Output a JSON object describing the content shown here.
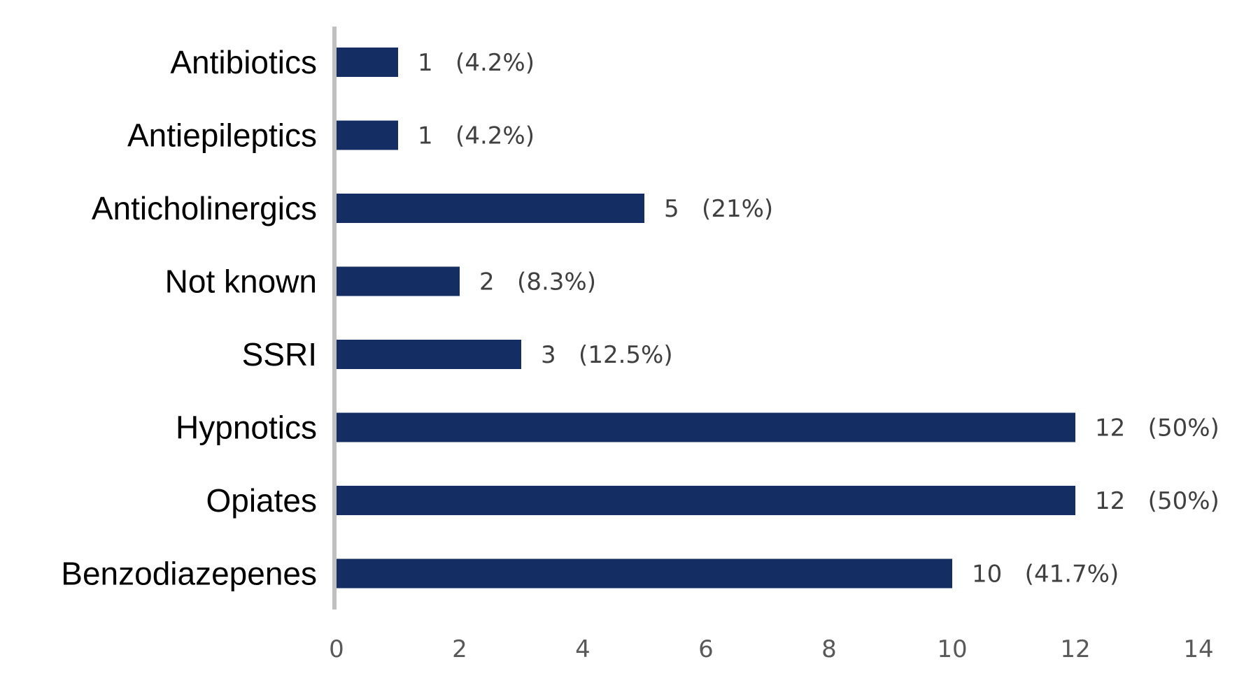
{
  "chart_data": {
    "type": "bar",
    "orientation": "horizontal",
    "categories": [
      "Antibiotics",
      "Antiepileptics",
      "Anticholinergics",
      "Not known",
      "SSRI",
      "Hypnotics",
      "Opiates",
      "Benzodiazepenes"
    ],
    "values": [
      1,
      1,
      5,
      2,
      3,
      12,
      12,
      10
    ],
    "data_labels": [
      "1   (4.2%)",
      "1   (4.2%)",
      "5   (21%)",
      "2   (8.3%)",
      "3   (12.5%)",
      "12   (50%)",
      "12   (50%)",
      "10   (41.7%)"
    ],
    "xlim": [
      0,
      14
    ],
    "xticks": [
      "0",
      "2",
      "4",
      "6",
      "8",
      "10",
      "12",
      "14"
    ],
    "title": "",
    "xlabel": "",
    "ylabel": "",
    "grid": false,
    "legend": false,
    "colors": {
      "bar": "#142e64",
      "axis": "#c0c0c0",
      "data_label": "#404040",
      "tick_label": "#595959",
      "category_label": "#000000"
    }
  }
}
